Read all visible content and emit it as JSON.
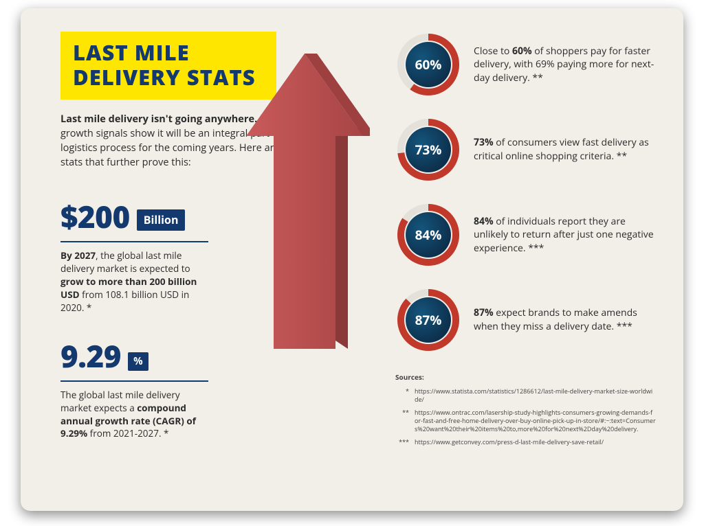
{
  "style": {
    "card_bg": "#f2efe9",
    "title_bg": "#ffe600",
    "brand_navy": "#13396f",
    "arrow_face": "#b84c4c",
    "arrow_side": "#8a3838",
    "circle_track": "#e4e1da",
    "circle_ring": "#c0392b",
    "circle_fill_a": "#14557c",
    "circle_fill_b": "#0d2e4a",
    "text_color": "#2b2b2b"
  },
  "title": {
    "line1": "LAST MILE",
    "line2": "DELIVERY STATS"
  },
  "intro": {
    "bold": "Last mile delivery isn't going anywhere.",
    "rest": " In fact, growth signals show it will be an integral part of the logistics process for the coming years. Here are some stats that further prove this:"
  },
  "big_stats": [
    {
      "value": "$200",
      "badge": "Billion",
      "desc_pre": "By 2027",
      "desc_mid": ", the global last mile delivery market is expected to ",
      "desc_bold": "grow to more than 200 billion USD",
      "desc_post": " from 108.1 billion USD in 2020. *"
    },
    {
      "value": "9.29",
      "badge": "%",
      "desc_pre": "",
      "desc_mid": "The global last mile delivery market expects a ",
      "desc_bold": "compound annual growth rate (CAGR) of 9.29%",
      "desc_post": " from 2021-2027. *"
    }
  ],
  "circle_stats": [
    {
      "pct": 60,
      "label": "60%",
      "text_pre": "Close to ",
      "text_bold": "60%",
      "text_post": " of shoppers pay for faster delivery, with 69% paying more for next-day delivery. **"
    },
    {
      "pct": 73,
      "label": "73%",
      "text_pre": "",
      "text_bold": "73%",
      "text_post": " of consumers view fast delivery as critical online shopping criteria. **"
    },
    {
      "pct": 84,
      "label": "84%",
      "text_pre": "",
      "text_bold": "84%",
      "text_post": " of individuals report they are unlikely to return after just one negative experience. ***"
    },
    {
      "pct": 87,
      "label": "87%",
      "text_pre": "",
      "text_bold": "87%",
      "text_post": " expect brands to make amends when they miss a delivery date. ***"
    }
  ],
  "sources": {
    "header": "Sources:",
    "items": [
      {
        "mark": "*",
        "url": "https://www.statista.com/statistics/1286612/last-mile-delivery-market-size-worldwide/"
      },
      {
        "mark": "**",
        "url": "https://www.ontrac.com/lasership-study-highlights-consumers-growing-demands-for-fast-and-free-home-delivery-over-buy-online-pick-up-in-store/#:~:text=Consumers%20want%20their%20items%20to,more%20for%20next%2Dday%20delivery."
      },
      {
        "mark": "***",
        "url": "https://www.getconvey.com/press-d-last-mile-delivery-save-retail/"
      }
    ]
  }
}
